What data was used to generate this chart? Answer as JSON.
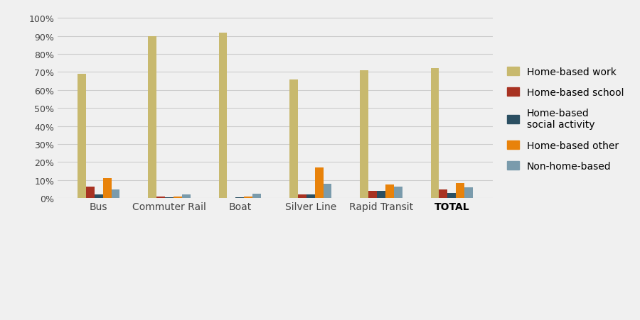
{
  "categories": [
    "Bus",
    "Commuter Rail",
    "Boat",
    "Silver Line",
    "Rapid Transit",
    "TOTAL"
  ],
  "series": [
    {
      "name": "Home-based work",
      "color": "#c8b96e",
      "values": [
        69,
        90,
        92,
        66,
        71,
        72
      ]
    },
    {
      "name": "Home-based school",
      "color": "#a83222",
      "values": [
        6.5,
        1,
        0,
        2,
        4,
        5
      ]
    },
    {
      "name": "Home-based\nsocial activity",
      "color": "#2b4f62",
      "values": [
        2,
        0.5,
        0.5,
        2,
        4,
        3
      ]
    },
    {
      "name": "Home-based other",
      "color": "#e8820a",
      "values": [
        11,
        1,
        1,
        17,
        7.5,
        8.5
      ]
    },
    {
      "name": "Non-home-based",
      "color": "#7a9bac",
      "values": [
        5,
        2,
        2.5,
        8,
        6.5,
        6
      ]
    }
  ],
  "ylim": [
    0,
    105
  ],
  "yticks": [
    0,
    10,
    20,
    30,
    40,
    50,
    60,
    70,
    80,
    90,
    100
  ],
  "ytick_labels": [
    "0%",
    "10%",
    "20%",
    "30%",
    "40%",
    "50%",
    "60%",
    "70%",
    "80%",
    "90%",
    "100%"
  ],
  "background_color": "#f0f0f0",
  "plot_bg_color": "#f0f0f0",
  "grid_color": "#cccccc",
  "bar_width": 0.12
}
